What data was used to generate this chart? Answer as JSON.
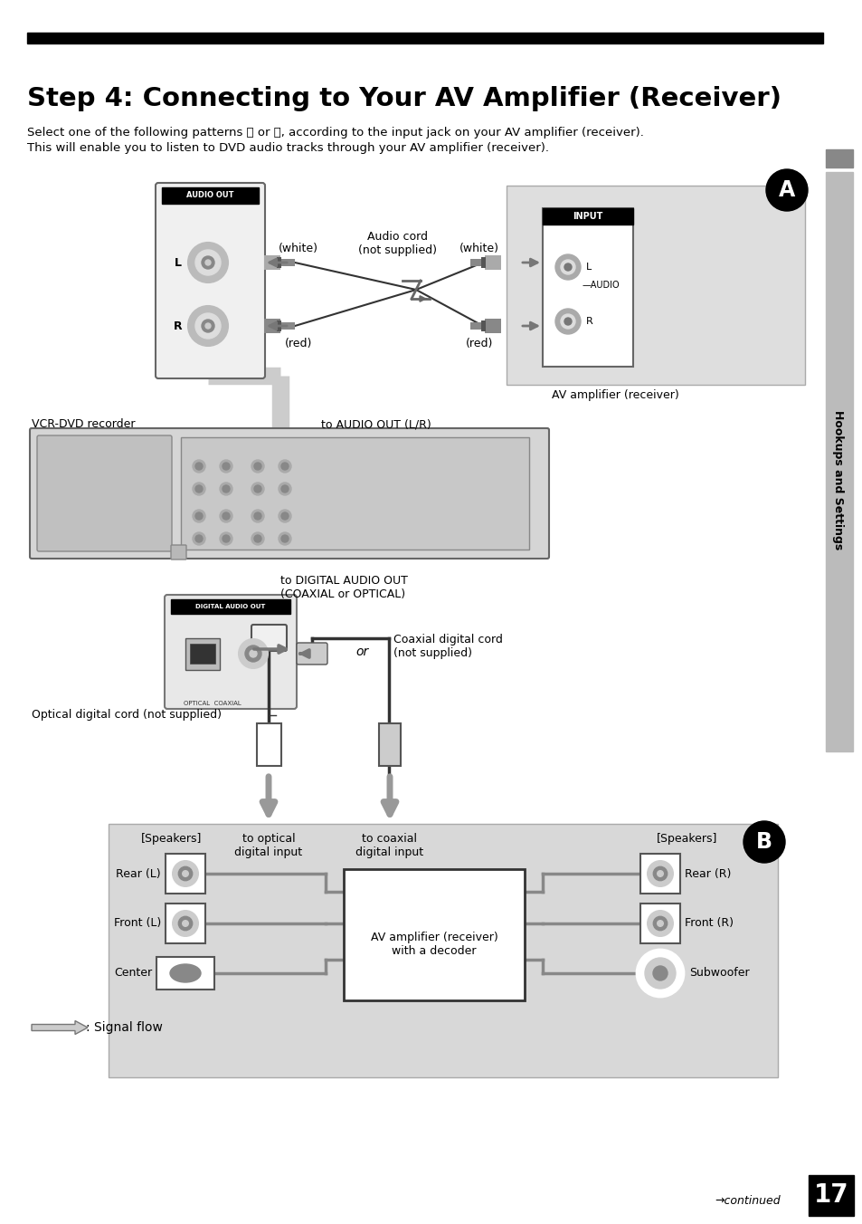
{
  "title": "Step 4: Connecting to Your AV Amplifier (Receiver)",
  "body_text_line1": "Select one of the following patterns Ⓐ or Ⓑ, according to the input jack on your AV amplifier (receiver).",
  "body_text_line2": "This will enable you to listen to DVD audio tracks through your AV amplifier (receiver).",
  "sidebar_text": "Hookups and Settings",
  "page_number": "17",
  "continued_text": "→continued",
  "signal_flow_text": ": Signal flow",
  "bg_color": "#ffffff"
}
